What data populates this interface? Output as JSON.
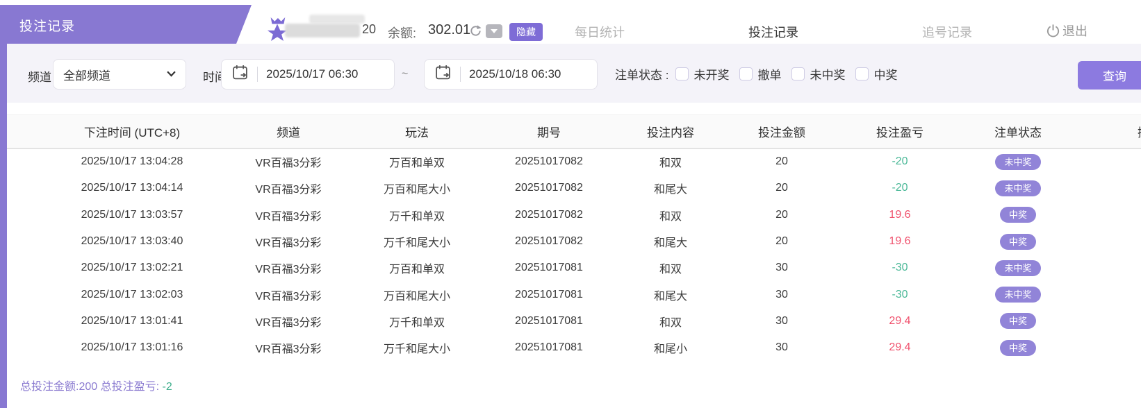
{
  "page_title": "投注记录",
  "header": {
    "username_suffix": "20",
    "balance_label": "余额:",
    "balance_value": "302.01",
    "hide_badge": "隐藏",
    "tabs": [
      {
        "label": "每日统计",
        "active": false
      },
      {
        "label": "投注记录",
        "active": true
      },
      {
        "label": "追号记录",
        "active": false
      }
    ],
    "logout_label": "退出"
  },
  "filters": {
    "channel_label": "频道",
    "channel_value": "全部频道",
    "time_label": "时间",
    "date_from": "2025/10/17 06:30",
    "date_to": "2025/10/18 06:30",
    "range_separator": "~",
    "status_label": "注单状态 :",
    "status_options": [
      "未开奖",
      "撤单",
      "未中奖",
      "中奖"
    ],
    "search_button": "查询"
  },
  "table": {
    "columns": [
      "下注时间 (UTC+8)",
      "频道",
      "玩法",
      "期号",
      "投注内容",
      "投注金额",
      "投注盈亏",
      "注单状态"
    ],
    "partial_column": "操作",
    "rows": [
      {
        "time": "2025/10/17 13:04:28",
        "channel": "VR百福3分彩",
        "play": "万百和单双",
        "period": "20251017082",
        "content": "和双",
        "amount": "20",
        "profit": "-20",
        "status": "未中奖"
      },
      {
        "time": "2025/10/17 13:04:14",
        "channel": "VR百福3分彩",
        "play": "万百和尾大小",
        "period": "20251017082",
        "content": "和尾大",
        "amount": "20",
        "profit": "-20",
        "status": "未中奖"
      },
      {
        "time": "2025/10/17 13:03:57",
        "channel": "VR百福3分彩",
        "play": "万千和单双",
        "period": "20251017082",
        "content": "和双",
        "amount": "20",
        "profit": "19.6",
        "status": "中奖"
      },
      {
        "time": "2025/10/17 13:03:40",
        "channel": "VR百福3分彩",
        "play": "万千和尾大小",
        "period": "20251017082",
        "content": "和尾大",
        "amount": "20",
        "profit": "19.6",
        "status": "中奖"
      },
      {
        "time": "2025/10/17 13:02:21",
        "channel": "VR百福3分彩",
        "play": "万百和单双",
        "period": "20251017081",
        "content": "和双",
        "amount": "30",
        "profit": "-30",
        "status": "未中奖"
      },
      {
        "time": "2025/10/17 13:02:03",
        "channel": "VR百福3分彩",
        "play": "万百和尾大小",
        "period": "20251017081",
        "content": "和尾大",
        "amount": "30",
        "profit": "-30",
        "status": "未中奖"
      },
      {
        "time": "2025/10/17 13:01:41",
        "channel": "VR百福3分彩",
        "play": "万千和单双",
        "period": "20251017081",
        "content": "和双",
        "amount": "30",
        "profit": "29.4",
        "status": "中奖"
      },
      {
        "time": "2025/10/17 13:01:16",
        "channel": "VR百福3分彩",
        "play": "万千和尾大小",
        "period": "20251017081",
        "content": "和尾小",
        "amount": "30",
        "profit": "29.4",
        "status": "中奖"
      }
    ]
  },
  "summary": {
    "amount_label": "总投注金额:",
    "amount_value": "200",
    "profit_label": "总投注盈亏:",
    "profit_value": "-2"
  },
  "colors": {
    "purple_main": "#8878d2",
    "badge_purple": "#9184d8",
    "button_purple": "#8c7ae0",
    "hide_badge_purple": "#7e6cd6",
    "loss_green": "#4ab897",
    "win_red": "#f0516d",
    "summary_purple": "#8a7ad0",
    "filter_bg": "#f4f3f9"
  }
}
